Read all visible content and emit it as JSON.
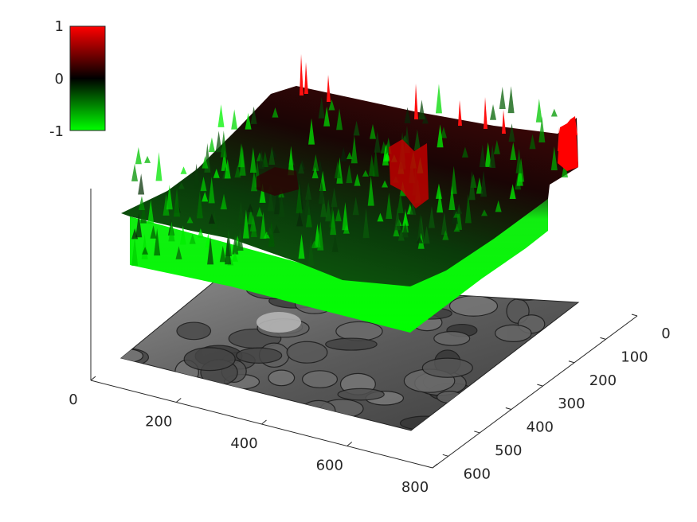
{
  "chart_data": {
    "type": "surface3d",
    "x_axis": {
      "range": [
        0,
        800
      ],
      "ticks": [
        "0",
        "200",
        "400",
        "600",
        "800"
      ]
    },
    "y_axis": {
      "range": [
        0,
        650
      ],
      "ticks": [
        "0",
        "100",
        "200",
        "300",
        "400",
        "500",
        "600"
      ]
    },
    "z_axis": {
      "visible_ticks": false
    },
    "colorbar": {
      "ticks": [
        "1",
        "0",
        "-1"
      ],
      "range": [
        -1,
        1
      ],
      "colors": {
        "low": "#00ff00",
        "mid": "#000000",
        "high": "#ff0000"
      }
    },
    "surface_colors": {
      "low": "#00ff00",
      "mid": "#000000",
      "high": "#ff0000"
    },
    "floor_image": "grayscale micrograph texture",
    "grid": false
  }
}
